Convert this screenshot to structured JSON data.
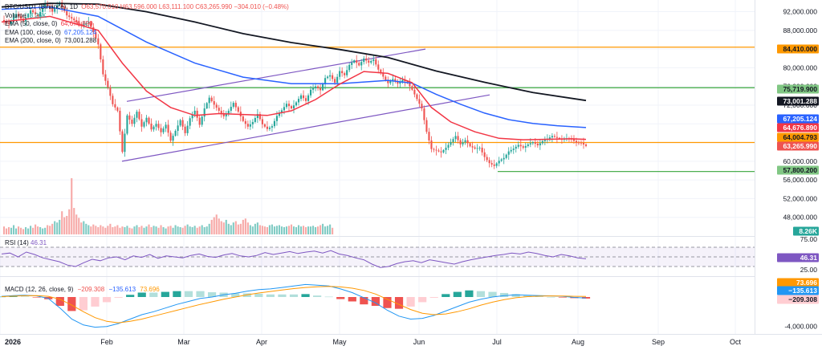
{
  "legend": {
    "symbol": "BTC/USDT (Binance), 1D",
    "ohlc": "O63,570.010 H63,596.000 L63,111.100 C63,265.990 −304.010 (−0.48%)",
    "volume_label": "Volume",
    "volume_value": "8.26K",
    "ema50_label": "EMA (50, close, 0)",
    "ema50_value": "64,676.890",
    "ema100_label": "EMA (100, close, 0)",
    "ema100_value": "67,205.124",
    "ema200_label": "EMA (200, close, 0)",
    "ema200_value": "73,001.288",
    "rsi_label": "RSI (14)",
    "rsi_value": "46.31",
    "macd_label": "MACD (12, 26, close, 9)",
    "macd_hist": "−209.308",
    "macd_line": "−135.613",
    "macd_signal": "73.696"
  },
  "colors": {
    "up": "#26a69a",
    "down": "#ef5350",
    "ema50": "#f23645",
    "ema100": "#2962ff",
    "ema200": "#131722",
    "channel": "#7e57c2",
    "orange_level": "#ff9800",
    "green_level": "#4caf50",
    "rsi_line": "#7e57c2",
    "macd_line": "#2196f3",
    "signal_line": "#ff9800"
  },
  "chart_data": {
    "type": "candlestick",
    "pair": "BTC/USDT",
    "timeframe": "1D",
    "price_axis_ticks": [
      "92,000.000",
      "88,000.000",
      "84,000.000",
      "80,000.000",
      "76,000.000",
      "72,000.000",
      "68,000.000",
      "64,000.000",
      "60,000.000",
      "56,000.000",
      "52,000.000",
      "48,000.000"
    ],
    "price_axis_range": [
      44000,
      94500
    ],
    "time_axis_labels": [
      "2026",
      "Feb",
      "Mar",
      "Apr",
      "May",
      "Jun",
      "Jul",
      "Aug",
      "Sep",
      "Oct"
    ],
    "price_labels": [
      {
        "text": "84,410.000",
        "kind": "orange-level"
      },
      {
        "text": "75,719.900",
        "kind": "green-level"
      },
      {
        "text": "73,001.288",
        "kind": "ema200"
      },
      {
        "text": "67,205.124",
        "kind": "ema100"
      },
      {
        "text": "64,676.890",
        "kind": "ema50"
      },
      {
        "text": "64,004.793",
        "kind": "orange-level"
      },
      {
        "text": "63,265.990",
        "kind": "last-price"
      },
      {
        "text": "57,800.200",
        "kind": "green-level"
      },
      {
        "text": "8.26K",
        "kind": "volume"
      }
    ],
    "horizontal_levels": [
      {
        "price": 84410,
        "color": "orange"
      },
      {
        "price": 75719.9,
        "color": "green"
      },
      {
        "price": 64004.793,
        "color": "orange"
      },
      {
        "price": 57800.2,
        "color": "green"
      }
    ],
    "last_price": 63265.99,
    "ema50_last": 64676.89,
    "ema100_last": 67205.124,
    "ema200_last": 73001.288,
    "channel": {
      "upper": [
        [
          0,
          72800
        ],
        [
          1,
          84000
        ]
      ],
      "lower": [
        [
          0,
          60000
        ],
        [
          1,
          74200
        ]
      ]
    },
    "rsi": {
      "ticks": [
        "75.00",
        "25.00"
      ],
      "last": 46.31,
      "levels": [
        70,
        50,
        30
      ]
    },
    "macd": {
      "ticks": [
        "-4,000.000"
      ],
      "macd_last": -135.613,
      "signal_last": 73.696,
      "hist_last": -209.308
    },
    "price_path": [
      [
        0,
        90200
      ],
      [
        3,
        89400
      ],
      [
        6,
        91500
      ],
      [
        9,
        90000
      ],
      [
        12,
        92300
      ],
      [
        15,
        91000
      ],
      [
        18,
        93800
      ],
      [
        21,
        92000
      ],
      [
        24,
        94000
      ],
      [
        27,
        91200
      ],
      [
        30,
        90200
      ],
      [
        33,
        89000
      ],
      [
        36,
        89800
      ],
      [
        38,
        87600
      ],
      [
        40,
        85000
      ],
      [
        42,
        78600
      ],
      [
        44,
        75800
      ],
      [
        46,
        72200
      ],
      [
        48,
        70800
      ],
      [
        50,
        62000
      ],
      [
        52,
        69800
      ],
      [
        54,
        68000
      ],
      [
        56,
        70600
      ],
      [
        58,
        67400
      ],
      [
        60,
        69300
      ],
      [
        62,
        66800
      ],
      [
        64,
        68000
      ],
      [
        66,
        66200
      ],
      [
        68,
        67800
      ],
      [
        70,
        64400
      ],
      [
        72,
        66500
      ],
      [
        74,
        68800
      ],
      [
        76,
        66000
      ],
      [
        78,
        69200
      ],
      [
        80,
        70800
      ],
      [
        82,
        67800
      ],
      [
        84,
        71300
      ],
      [
        86,
        73600
      ],
      [
        88,
        72100
      ],
      [
        90,
        70800
      ],
      [
        92,
        69600
      ],
      [
        94,
        70800
      ],
      [
        96,
        72500
      ],
      [
        98,
        70600
      ],
      [
        100,
        68600
      ],
      [
        102,
        67400
      ],
      [
        104,
        68400
      ],
      [
        106,
        70100
      ],
      [
        108,
        67900
      ],
      [
        110,
        66900
      ],
      [
        112,
        67500
      ],
      [
        114,
        69700
      ],
      [
        116,
        70900
      ],
      [
        118,
        72300
      ],
      [
        120,
        71300
      ],
      [
        122,
        72600
      ],
      [
        124,
        74100
      ],
      [
        126,
        72900
      ],
      [
        128,
        75300
      ],
      [
        130,
        76000
      ],
      [
        132,
        75200
      ],
      [
        134,
        77800
      ],
      [
        136,
        78400
      ],
      [
        138,
        76800
      ],
      [
        140,
        79300
      ],
      [
        142,
        78400
      ],
      [
        144,
        80600
      ],
      [
        146,
        81600
      ],
      [
        148,
        80500
      ],
      [
        150,
        82000
      ],
      [
        152,
        81100
      ],
      [
        154,
        81800
      ],
      [
        156,
        79600
      ],
      [
        158,
        78100
      ],
      [
        160,
        76700
      ],
      [
        162,
        77600
      ],
      [
        164,
        76600
      ],
      [
        166,
        77400
      ],
      [
        168,
        76800
      ],
      [
        170,
        75300
      ],
      [
        172,
        73300
      ],
      [
        174,
        71300
      ],
      [
        176,
        66300
      ],
      [
        178,
        62600
      ],
      [
        180,
        62300
      ],
      [
        182,
        61900
      ],
      [
        184,
        62900
      ],
      [
        186,
        64100
      ],
      [
        188,
        65400
      ],
      [
        190,
        63600
      ],
      [
        192,
        64500
      ],
      [
        194,
        63200
      ],
      [
        196,
        62700
      ],
      [
        198,
        62900
      ],
      [
        200,
        60900
      ],
      [
        202,
        59600
      ],
      [
        204,
        59000
      ],
      [
        206,
        60100
      ],
      [
        208,
        60700
      ],
      [
        210,
        62100
      ],
      [
        212,
        62700
      ],
      [
        214,
        63500
      ],
      [
        216,
        62900
      ],
      [
        218,
        63600
      ],
      [
        220,
        64100
      ],
      [
        222,
        63400
      ],
      [
        224,
        64300
      ],
      [
        226,
        64800
      ],
      [
        228,
        65400
      ],
      [
        230,
        65000
      ],
      [
        232,
        64600
      ],
      [
        234,
        64900
      ],
      [
        236,
        64700
      ],
      [
        238,
        64000
      ],
      [
        240,
        63900
      ],
      [
        242,
        63266
      ]
    ]
  },
  "timeline": {
    "bars": 242
  },
  "indicator_paths": {
    "ema50": [
      [
        0,
        89800
      ],
      [
        20,
        91000
      ],
      [
        40,
        88000
      ],
      [
        50,
        81000
      ],
      [
        60,
        75000
      ],
      [
        70,
        71500
      ],
      [
        80,
        69800
      ],
      [
        90,
        70200
      ],
      [
        100,
        70000
      ],
      [
        110,
        69800
      ],
      [
        120,
        70800
      ],
      [
        130,
        73200
      ],
      [
        140,
        76500
      ],
      [
        150,
        79200
      ],
      [
        160,
        78800
      ],
      [
        170,
        76800
      ],
      [
        178,
        71500
      ],
      [
        186,
        68400
      ],
      [
        196,
        66300
      ],
      [
        206,
        64900
      ],
      [
        216,
        64600
      ],
      [
        226,
        64700
      ],
      [
        236,
        64800
      ],
      [
        242,
        64677
      ]
    ],
    "ema100": [
      [
        0,
        92500
      ],
      [
        20,
        93000
      ],
      [
        40,
        91000
      ],
      [
        60,
        85500
      ],
      [
        80,
        81000
      ],
      [
        100,
        78000
      ],
      [
        120,
        76600
      ],
      [
        140,
        76600
      ],
      [
        160,
        77300
      ],
      [
        170,
        76700
      ],
      [
        180,
        74300
      ],
      [
        190,
        72200
      ],
      [
        200,
        70300
      ],
      [
        210,
        68900
      ],
      [
        220,
        68100
      ],
      [
        230,
        67600
      ],
      [
        242,
        67205
      ]
    ],
    "ema200": [
      [
        0,
        93000
      ],
      [
        20,
        93800
      ],
      [
        40,
        93600
      ],
      [
        60,
        92000
      ],
      [
        80,
        89800
      ],
      [
        100,
        87300
      ],
      [
        120,
        85400
      ],
      [
        140,
        83900
      ],
      [
        160,
        82200
      ],
      [
        180,
        79300
      ],
      [
        200,
        76900
      ],
      [
        220,
        74700
      ],
      [
        242,
        73001
      ]
    ],
    "volume": [
      12,
      9,
      11,
      10,
      14,
      9,
      12,
      10,
      8,
      11,
      9,
      13,
      10,
      15,
      12,
      11,
      9,
      10,
      14,
      13,
      16,
      20,
      18,
      22,
      35,
      26,
      28,
      38,
      85,
      40,
      30,
      25,
      18,
      20,
      16,
      14,
      12,
      15,
      13,
      11,
      14,
      12,
      10,
      13,
      16,
      11,
      12,
      14,
      10,
      12,
      11,
      13,
      10,
      9,
      12,
      14,
      11,
      13,
      10,
      12,
      15,
      11,
      13,
      12,
      10,
      14,
      11,
      9,
      12,
      13,
      10,
      14,
      12,
      11,
      10,
      13,
      15,
      12,
      11,
      13,
      10,
      12,
      14,
      11,
      12,
      16,
      22,
      26,
      30,
      24,
      20,
      18,
      22,
      16,
      14,
      18,
      20,
      15,
      16,
      22,
      24,
      18,
      14,
      12,
      16,
      18,
      14,
      13,
      12,
      11,
      14,
      15,
      12,
      13,
      14,
      12,
      11,
      12,
      13,
      15,
      12,
      11,
      14,
      12,
      13,
      11,
      12,
      12,
      13,
      11,
      12,
      14,
      16,
      12,
      13,
      15,
      10
    ],
    "rsi": [
      56,
      58,
      50,
      60,
      55,
      48,
      44,
      40,
      33,
      30,
      38,
      45,
      42,
      48,
      50,
      44,
      52,
      49,
      55,
      47,
      52,
      50,
      48,
      53,
      56,
      51,
      49,
      54,
      57,
      52,
      50,
      53,
      59,
      55,
      58,
      61,
      57,
      60,
      62,
      58,
      63,
      56,
      53,
      48,
      44,
      35,
      28,
      30,
      36,
      40,
      42,
      38,
      44,
      41,
      38,
      35,
      40,
      44,
      47,
      50,
      53,
      55,
      58,
      56,
      60,
      57,
      53,
      50,
      55,
      52,
      48,
      46
    ],
    "macd": [
      100,
      200,
      250,
      150,
      -200,
      -1500,
      -3000,
      -3800,
      -4100,
      -4000,
      -3600,
      -3000,
      -2400,
      -2000,
      -1500,
      -1000,
      -600,
      -200,
      0,
      300,
      500,
      800,
      1000,
      1100,
      1300,
      1500,
      1700,
      1600,
      1500,
      1100,
      600,
      -100,
      -800,
      -1800,
      -2600,
      -3000,
      -2900,
      -2500,
      -1900,
      -1300,
      -700,
      -300,
      0,
      200,
      300,
      250,
      200,
      150,
      100,
      -50,
      -136
    ],
    "signal": [
      50,
      120,
      180,
      200,
      100,
      -300,
      -1100,
      -2000,
      -2800,
      -3300,
      -3500,
      -3300,
      -3000,
      -2600,
      -2200,
      -1800,
      -1400,
      -1000,
      -650,
      -300,
      0,
      300,
      550,
      750,
      950,
      1150,
      1300,
      1400,
      1450,
      1380,
      1200,
      900,
      400,
      -300,
      -1000,
      -1700,
      -2200,
      -2400,
      -2300,
      -2000,
      -1600,
      -1100,
      -700,
      -350,
      -100,
      50,
      120,
      150,
      130,
      100,
      74
    ]
  }
}
